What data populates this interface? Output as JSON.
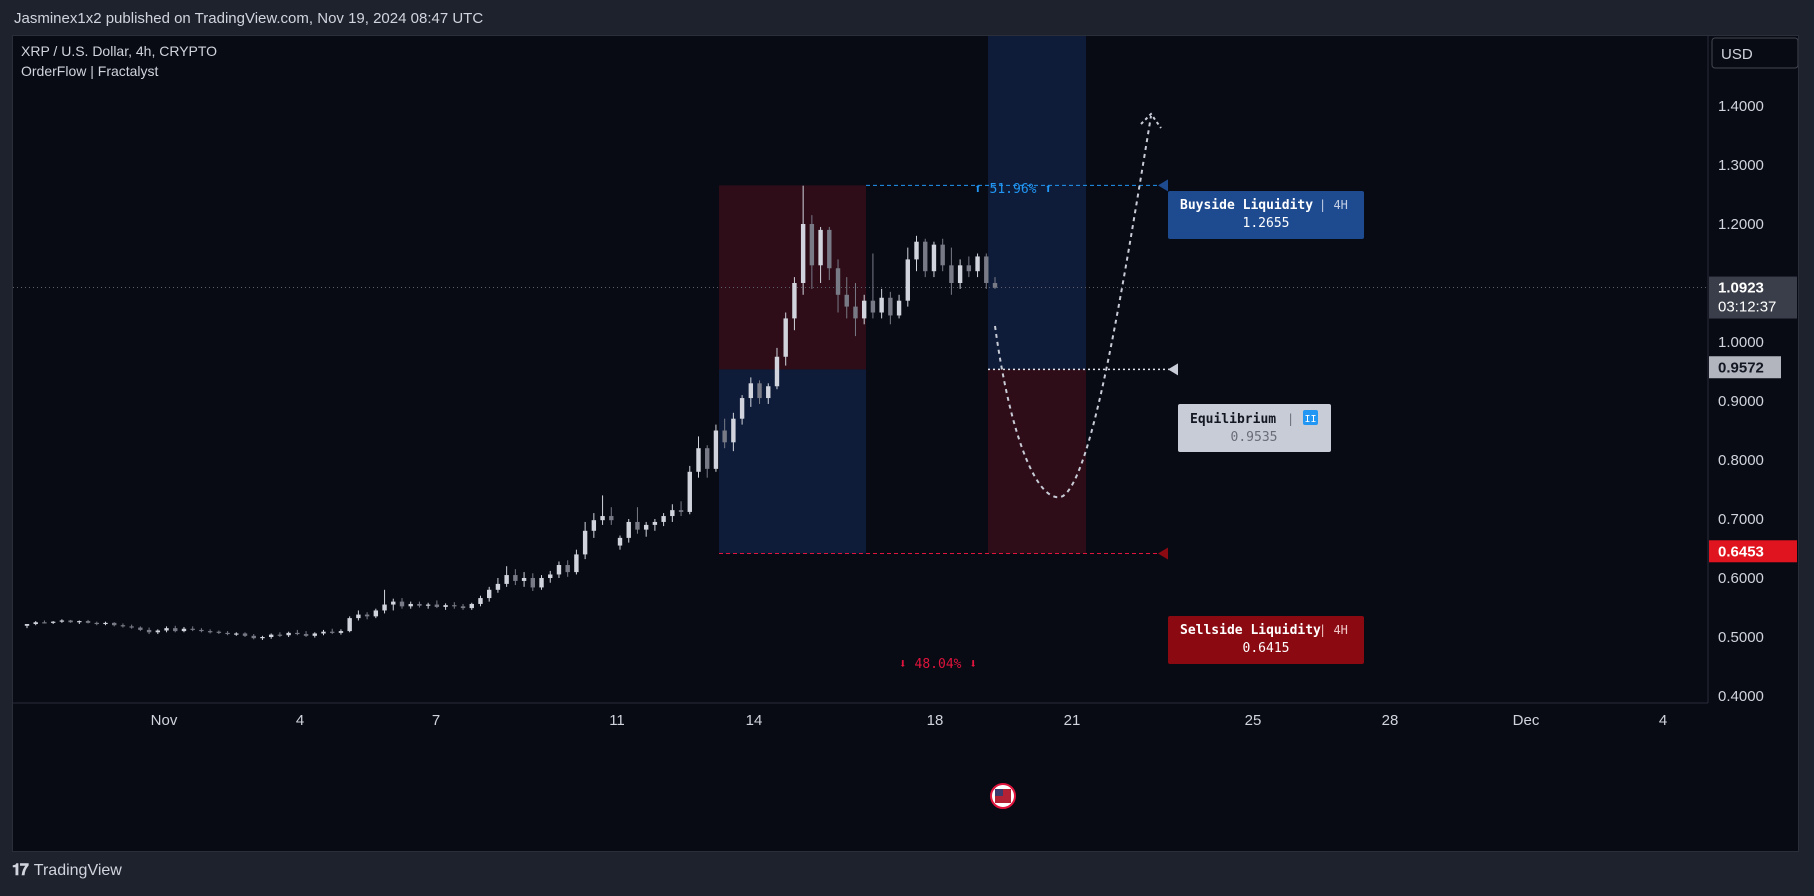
{
  "header": {
    "published": "Jasminex1x2 published on TradingView.com, Nov 19, 2024 08:47 UTC"
  },
  "legend": {
    "symbol": "XRP / U.S. Dollar, 4h, CRYPTO",
    "indicator": "OrderFlow | Fractalyst"
  },
  "currency_button": "USD",
  "footer": {
    "brand": "TradingView"
  },
  "colors": {
    "background": "#080a14",
    "candle_up": "#d1d4dc",
    "candle_down": "#787b86",
    "buyside": "#1e4a8f",
    "sellside": "#8b0a12",
    "equilibrium": "#c8ccd6",
    "premium_zone": "#2e0d18",
    "discount_zone": "#0e1c3a"
  },
  "chart_data": {
    "type": "candlestick",
    "title": "XRP / U.S. Dollar, 4h, CRYPTO",
    "ylim": [
      0.38,
      1.52
    ],
    "y_ticks": [
      "1.4000",
      "1.3000",
      "1.2000",
      "1.0000",
      "0.9000",
      "0.8000",
      "0.7000",
      "0.6000",
      "0.5000",
      "0.4000"
    ],
    "x_ticks": [
      "Nov",
      "4",
      "7",
      "11",
      "14",
      "18",
      "21",
      "25",
      "28",
      "Dec",
      "4"
    ],
    "price_labels": {
      "last": {
        "value": "1.0923",
        "countdown": "03:12:37",
        "color": "#3a3e4a"
      },
      "eq": {
        "value": "0.9572",
        "color": "#b2b5be"
      },
      "low": {
        "value": "0.6453",
        "color": "#e0141e"
      }
    },
    "annotations": {
      "buyside": {
        "title": "Buyside Liquidity",
        "tf": "4H",
        "value": "1.2655"
      },
      "sellside": {
        "title": "Sellside Liquidity",
        "tf": "4H",
        "value": "0.6415"
      },
      "equilibrium": {
        "title": "Equilibrium",
        "badge": "II",
        "value": "0.9535"
      },
      "up_pct": "⬆ 51.96% ⬆",
      "down_pct": "⬇ 48.04% ⬇"
    },
    "candles": [
      [
        0.519,
        0.522,
        0.515,
        0.522
      ],
      [
        0.522,
        0.527,
        0.52,
        0.525
      ],
      [
        0.525,
        0.528,
        0.523,
        0.524
      ],
      [
        0.524,
        0.527,
        0.522,
        0.526
      ],
      [
        0.526,
        0.53,
        0.524,
        0.528
      ],
      [
        0.528,
        0.529,
        0.524,
        0.525
      ],
      [
        0.525,
        0.528,
        0.522,
        0.527
      ],
      [
        0.527,
        0.529,
        0.523,
        0.524
      ],
      [
        0.524,
        0.526,
        0.52,
        0.522
      ],
      [
        0.522,
        0.526,
        0.52,
        0.524
      ],
      [
        0.524,
        0.525,
        0.518,
        0.52
      ],
      [
        0.52,
        0.523,
        0.516,
        0.518
      ],
      [
        0.518,
        0.521,
        0.514,
        0.516
      ],
      [
        0.516,
        0.518,
        0.51,
        0.512
      ],
      [
        0.512,
        0.516,
        0.505,
        0.508
      ],
      [
        0.508,
        0.513,
        0.505,
        0.511
      ],
      [
        0.511,
        0.518,
        0.508,
        0.515
      ],
      [
        0.515,
        0.519,
        0.508,
        0.51
      ],
      [
        0.51,
        0.517,
        0.508,
        0.514
      ],
      [
        0.514,
        0.518,
        0.51,
        0.512
      ],
      [
        0.512,
        0.515,
        0.508,
        0.51
      ],
      [
        0.51,
        0.513,
        0.506,
        0.509
      ],
      [
        0.509,
        0.511,
        0.505,
        0.507
      ],
      [
        0.507,
        0.51,
        0.503,
        0.505
      ],
      [
        0.505,
        0.508,
        0.502,
        0.506
      ],
      [
        0.506,
        0.508,
        0.5,
        0.502
      ],
      [
        0.502,
        0.505,
        0.496,
        0.498
      ],
      [
        0.498,
        0.502,
        0.495,
        0.5
      ],
      [
        0.5,
        0.506,
        0.497,
        0.504
      ],
      [
        0.504,
        0.508,
        0.5,
        0.503
      ],
      [
        0.503,
        0.509,
        0.5,
        0.507
      ],
      [
        0.507,
        0.512,
        0.503,
        0.505
      ],
      [
        0.505,
        0.51,
        0.5,
        0.502
      ],
      [
        0.502,
        0.508,
        0.499,
        0.506
      ],
      [
        0.506,
        0.512,
        0.503,
        0.509
      ],
      [
        0.509,
        0.514,
        0.505,
        0.507
      ],
      [
        0.507,
        0.513,
        0.504,
        0.51
      ],
      [
        0.51,
        0.535,
        0.508,
        0.532
      ],
      [
        0.532,
        0.545,
        0.528,
        0.538
      ],
      [
        0.538,
        0.542,
        0.53,
        0.535
      ],
      [
        0.535,
        0.548,
        0.532,
        0.545
      ],
      [
        0.545,
        0.58,
        0.54,
        0.555
      ],
      [
        0.555,
        0.565,
        0.545,
        0.56
      ],
      [
        0.56,
        0.566,
        0.548,
        0.552
      ],
      [
        0.552,
        0.56,
        0.548,
        0.556
      ],
      [
        0.556,
        0.56,
        0.55,
        0.553
      ],
      [
        0.553,
        0.558,
        0.548,
        0.555
      ],
      [
        0.555,
        0.562,
        0.549,
        0.551
      ],
      [
        0.551,
        0.557,
        0.546,
        0.554
      ],
      [
        0.554,
        0.559,
        0.548,
        0.552
      ],
      [
        0.552,
        0.556,
        0.546,
        0.549
      ],
      [
        0.549,
        0.558,
        0.546,
        0.556
      ],
      [
        0.556,
        0.57,
        0.552,
        0.566
      ],
      [
        0.566,
        0.585,
        0.56,
        0.58
      ],
      [
        0.58,
        0.6,
        0.575,
        0.59
      ],
      [
        0.59,
        0.62,
        0.585,
        0.605
      ],
      [
        0.605,
        0.615,
        0.588,
        0.595
      ],
      [
        0.595,
        0.61,
        0.585,
        0.6
      ],
      [
        0.6,
        0.608,
        0.578,
        0.584
      ],
      [
        0.584,
        0.605,
        0.58,
        0.6
      ],
      [
        0.6,
        0.612,
        0.592,
        0.606
      ],
      [
        0.606,
        0.628,
        0.6,
        0.622
      ],
      [
        0.622,
        0.63,
        0.602,
        0.61
      ],
      [
        0.61,
        0.648,
        0.606,
        0.64
      ],
      [
        0.64,
        0.695,
        0.632,
        0.68
      ],
      [
        0.68,
        0.71,
        0.668,
        0.698
      ],
      [
        0.698,
        0.74,
        0.69,
        0.705
      ],
      [
        0.705,
        0.72,
        0.69,
        0.698
      ],
      [
        0.655,
        0.672,
        0.648,
        0.668
      ],
      [
        0.668,
        0.7,
        0.66,
        0.695
      ],
      [
        0.695,
        0.72,
        0.675,
        0.682
      ],
      [
        0.682,
        0.695,
        0.67,
        0.69
      ],
      [
        0.69,
        0.7,
        0.68,
        0.695
      ],
      [
        0.695,
        0.71,
        0.688,
        0.705
      ],
      [
        0.705,
        0.725,
        0.695,
        0.715
      ],
      [
        0.715,
        0.73,
        0.705,
        0.712
      ],
      [
        0.712,
        0.79,
        0.708,
        0.78
      ],
      [
        0.78,
        0.84,
        0.77,
        0.82
      ],
      [
        0.82,
        0.825,
        0.77,
        0.785
      ],
      [
        0.785,
        0.86,
        0.78,
        0.85
      ],
      [
        0.85,
        0.87,
        0.82,
        0.83
      ],
      [
        0.83,
        0.88,
        0.815,
        0.87
      ],
      [
        0.87,
        0.91,
        0.86,
        0.905
      ],
      [
        0.905,
        0.94,
        0.89,
        0.93
      ],
      [
        0.93,
        0.935,
        0.895,
        0.905
      ],
      [
        0.905,
        0.93,
        0.895,
        0.925
      ],
      [
        0.925,
        0.99,
        0.92,
        0.975
      ],
      [
        0.975,
        1.05,
        0.96,
        1.04
      ],
      [
        1.04,
        1.11,
        1.02,
        1.1
      ],
      [
        1.1,
        1.265,
        1.08,
        1.2
      ],
      [
        1.2,
        1.215,
        1.09,
        1.13
      ],
      [
        1.13,
        1.195,
        1.1,
        1.19
      ],
      [
        1.19,
        1.195,
        1.105,
        1.125
      ],
      [
        1.125,
        1.14,
        1.05,
        1.08
      ],
      [
        1.08,
        1.11,
        1.04,
        1.06
      ],
      [
        1.06,
        1.1,
        1.01,
        1.04
      ],
      [
        1.04,
        1.08,
        1.03,
        1.07
      ],
      [
        1.07,
        1.15,
        1.04,
        1.05
      ],
      [
        1.05,
        1.09,
        1.04,
        1.075
      ],
      [
        1.075,
        1.085,
        1.03,
        1.045
      ],
      [
        1.045,
        1.08,
        1.04,
        1.07
      ],
      [
        1.07,
        1.16,
        1.06,
        1.14
      ],
      [
        1.14,
        1.18,
        1.12,
        1.17
      ],
      [
        1.17,
        1.175,
        1.11,
        1.12
      ],
      [
        1.12,
        1.17,
        1.11,
        1.165
      ],
      [
        1.165,
        1.175,
        1.12,
        1.13
      ],
      [
        1.13,
        1.16,
        1.08,
        1.1
      ],
      [
        1.1,
        1.14,
        1.09,
        1.13
      ],
      [
        1.13,
        1.145,
        1.11,
        1.12
      ],
      [
        1.12,
        1.15,
        1.11,
        1.145
      ],
      [
        1.145,
        1.15,
        1.09,
        1.1
      ],
      [
        1.1,
        1.11,
        1.09,
        1.092
      ]
    ]
  }
}
